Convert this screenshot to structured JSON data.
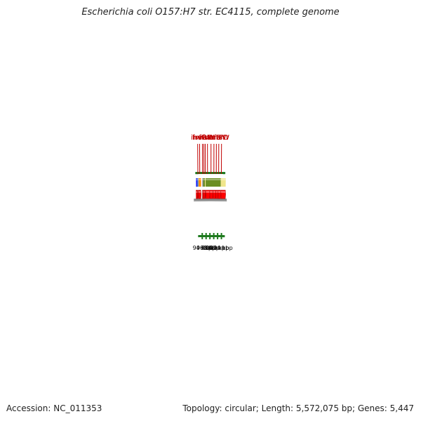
{
  "title": "Escherichia coli O157:H7 str. EC4115, complete genome",
  "footer": {
    "accession": "Accession: NC_011353",
    "summary": "Topology: circular; Length: 5,572,075 bp; Genes: 5,447"
  },
  "colors": {
    "gene_label": "#c00000",
    "cds_arrow": "#ff0000",
    "tick": "#1e7a1e",
    "backbone": "#8a8a8a",
    "cog_green": "#6b8e23",
    "cog_yellow": "#f0e68c",
    "cog_orange": "#ff8c00",
    "cog_blue": "#4f81bd",
    "cog_gray": "#6e6e6e"
  },
  "gene_labels": [
    {
      "name": "ilvH",
      "kbp": 91.95
    },
    {
      "name": "fruR",
      "kbp": 92.9
    },
    {
      "name": "mraZ",
      "kbp": 94.3
    },
    {
      "name": "mraW",
      "kbp": 95.0
    },
    {
      "name": "ftsL",
      "kbp": 95.7
    },
    {
      "name": "ftsI",
      "kbp": 96.8
    },
    {
      "name": "murE",
      "kbp": 98.55
    },
    {
      "name": "murF",
      "kbp": 100.0
    },
    {
      "name": "mraY",
      "kbp": 101.2
    },
    {
      "name": "murD",
      "kbp": 102.4
    },
    {
      "name": "ftsW",
      "kbp": 103.75
    }
  ],
  "cog_bars": [
    {
      "start": 91.0,
      "end": 92.2,
      "color": "#4f81bd"
    },
    {
      "start": 91.0,
      "end": 91.6,
      "color": "#1a1aff"
    },
    {
      "start": 92.3,
      "end": 93.55,
      "color": "#ff8c00"
    },
    {
      "start": 94.2,
      "end": 94.65,
      "color": "#6e6e6e"
    },
    {
      "start": 94.65,
      "end": 95.5,
      "color": "#6b8e23"
    },
    {
      "start": 95.5,
      "end": 95.85,
      "color": "#f0e68c"
    },
    {
      "start": 95.85,
      "end": 103.5,
      "color": "#6b8e23"
    },
    {
      "start": 103.5,
      "end": 106.0,
      "color": "#f0e68c"
    }
  ],
  "cds_arrows": [
    {
      "start": 91.0,
      "end": 91.7
    },
    {
      "start": 91.75,
      "end": 92.2
    },
    {
      "start": 92.3,
      "end": 93.55
    },
    {
      "start": 94.2,
      "end": 94.55
    },
    {
      "start": 94.6,
      "end": 95.55
    },
    {
      "start": 95.6,
      "end": 95.9
    },
    {
      "start": 95.95,
      "end": 97.95
    },
    {
      "start": 98.0,
      "end": 99.55
    },
    {
      "start": 99.6,
      "end": 101.0
    },
    {
      "start": 101.05,
      "end": 102.15
    },
    {
      "start": 102.2,
      "end": 103.6
    },
    {
      "start": 103.65,
      "end": 106.0
    }
  ],
  "kbp_ticks": [
    {
      "kbp": 94,
      "label": "94 kbp"
    },
    {
      "kbp": 96,
      "label": "96 kbp"
    },
    {
      "kbp": 98,
      "label": "98 kbp"
    },
    {
      "kbp": 100,
      "label": "100 kbp"
    },
    {
      "kbp": 102,
      "label": "102 kbp"
    },
    {
      "kbp": 104,
      "label": "104 kbp"
    }
  ],
  "range_kbp": [
    91.0,
    105.4
  ]
}
